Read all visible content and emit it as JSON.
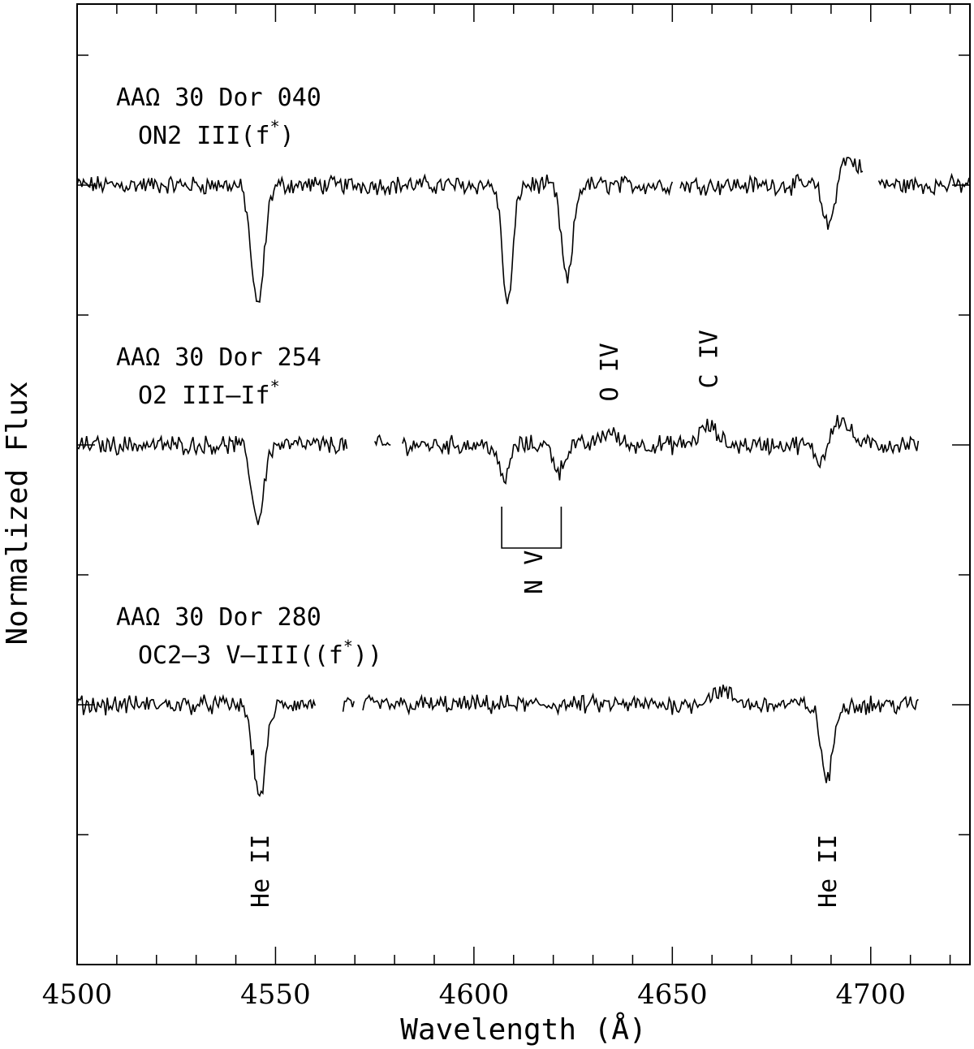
{
  "chart_data": {
    "type": "line",
    "xlabel": "Wavelength (Å)",
    "ylabel": "Normalized Flux",
    "xlim": [
      4500,
      4725
    ],
    "x_ticks": [
      4500,
      4550,
      4600,
      4650,
      4700
    ],
    "x_tick_labels": [
      "4500",
      "4550",
      "4600",
      "4650",
      "4700"
    ],
    "x_minor_step": 10,
    "y_scale": "arbitrary offsets, one spectrum per level",
    "grid": false,
    "series": [
      {
        "name_line1": "AAΩ 30 Dor 040",
        "name_line2": "ON2 III(f",
        "name_sup": "*",
        "name_tail": ")",
        "baseline": 1.0,
        "segments": [
          [
            4500,
            4650
          ],
          [
            4652,
            4698
          ],
          [
            4702,
            4725
          ]
        ],
        "features": [
          {
            "center": 4545.5,
            "depth": 0.47,
            "width": 1.6
          },
          {
            "center": 4608.5,
            "depth": 0.46,
            "width": 1.3
          },
          {
            "center": 4623.5,
            "depth": 0.37,
            "width": 1.4
          },
          {
            "center": 4689.5,
            "depth": 0.2,
            "width": 1.5
          },
          {
            "center": 4694.0,
            "depth": -0.1,
            "width": 3.5
          }
        ]
      },
      {
        "name_line1": "AAΩ 30 Dor 254",
        "name_line2": "O2 III–If",
        "name_sup": "*",
        "name_tail": "",
        "baseline": 0.0,
        "segments": [
          [
            4500,
            4568
          ],
          [
            4575,
            4579
          ],
          [
            4582,
            4712
          ]
        ],
        "features": [
          {
            "center": 4545.5,
            "depth": 0.29,
            "width": 1.5
          },
          {
            "center": 4607.5,
            "depth": 0.14,
            "width": 1.3
          },
          {
            "center": 4621.5,
            "depth": 0.1,
            "width": 1.3
          },
          {
            "center": 4634.0,
            "depth": -0.05,
            "width": 2.0
          },
          {
            "center": 4659.0,
            "depth": -0.07,
            "width": 2.2
          },
          {
            "center": 4687.5,
            "depth": 0.08,
            "width": 1.5
          },
          {
            "center": 4692.0,
            "depth": -0.1,
            "width": 2.5
          }
        ]
      },
      {
        "name_line1": "AAΩ 30 Dor 280",
        "name_line2": "OC2–3 V–III((f",
        "name_sup": "*",
        "name_tail": "))",
        "baseline": -1.0,
        "segments": [
          [
            4500,
            4560
          ],
          [
            4567,
            4570
          ],
          [
            4572,
            4712
          ]
        ],
        "features": [
          {
            "center": 4546.0,
            "depth": 0.35,
            "width": 1.6
          },
          {
            "center": 4662.0,
            "depth": -0.05,
            "width": 3.0
          },
          {
            "center": 4689.0,
            "depth": 0.29,
            "width": 1.5
          }
        ]
      }
    ],
    "annotations": [
      {
        "text": "He II",
        "x": 4546,
        "level": -1.64,
        "rotated": true
      },
      {
        "text": "He II",
        "x": 4689,
        "level": -1.64,
        "rotated": true
      },
      {
        "text": "O IV",
        "x": 4634,
        "level": 0.28,
        "rotated": true
      },
      {
        "text": "C IV",
        "x": 4659,
        "level": 0.33,
        "rotated": true
      },
      {
        "text": "N V",
        "x": 4615,
        "level": -0.49,
        "rotated": true,
        "bracket": [
          4607,
          4622
        ]
      }
    ]
  }
}
